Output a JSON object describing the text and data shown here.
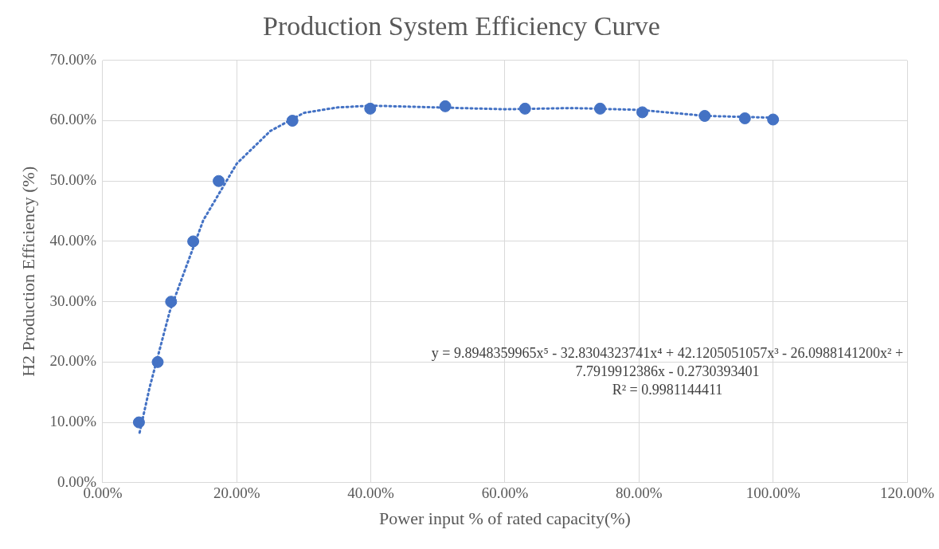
{
  "chart_data": {
    "type": "scatter",
    "title": "Production System Efficiency Curve",
    "xlabel": "Power input % of rated capacity(%)",
    "ylabel": "H2 Production Efficiency (%)",
    "series": [
      {
        "type": "scatter",
        "color": "#4472c4",
        "x": [
          5.4,
          8.2,
          10.2,
          13.5,
          17.3,
          28.3,
          39.9,
          51.1,
          63.0,
          74.2,
          80.5,
          89.8,
          95.8,
          100
        ],
        "values": [
          10,
          20,
          30,
          40,
          50,
          60,
          62.0,
          62.4,
          62.0,
          62.0,
          61.4,
          60.8,
          60.4,
          60.2
        ],
        "marker": "circle"
      },
      {
        "type": "line",
        "color": "#4472c4",
        "line_style": "dotted",
        "marker": "none",
        "x": [
          5.5,
          7,
          10,
          15,
          20,
          25,
          30,
          35,
          40,
          50,
          60,
          70,
          80,
          90,
          100
        ],
        "values": [
          8.3,
          15.8,
          28.4,
          43.5,
          52.9,
          58.3,
          61.3,
          62.2,
          62.5,
          62.2,
          61.9,
          62.1,
          61.8,
          60.8,
          60.5
        ]
      }
    ],
    "xlim": [
      0,
      120
    ],
    "xticks": [
      {
        "value": 0,
        "label": "0.00%"
      },
      {
        "value": 20,
        "label": "20.00%"
      },
      {
        "value": 40,
        "label": "40.00%"
      },
      {
        "value": 60,
        "label": "60.00%"
      },
      {
        "value": 80,
        "label": "80.00%"
      },
      {
        "value": 100,
        "label": "100.00%"
      },
      {
        "value": 120,
        "label": "120.00%"
      }
    ],
    "ylim": [
      0,
      70
    ],
    "yticks": [
      {
        "value": 0,
        "label": "0.00%"
      },
      {
        "value": 10,
        "label": "10.00%"
      },
      {
        "value": 20,
        "label": "20.00%"
      },
      {
        "value": 30,
        "label": "30.00%"
      },
      {
        "value": 40,
        "label": "40.00%"
      },
      {
        "value": 50,
        "label": "50.00%"
      },
      {
        "value": 60,
        "label": "60.00%"
      },
      {
        "value": 70,
        "label": "70.00%"
      }
    ],
    "grid": true,
    "legend": false,
    "annotations": [
      "y = 9.8948359965x⁵ - 32.8304323741x⁴ + 42.1205051057x³ - 26.0988141200x² +\n7.7919912386x - 0.2730393401\nR² = 0.9981144411"
    ]
  }
}
